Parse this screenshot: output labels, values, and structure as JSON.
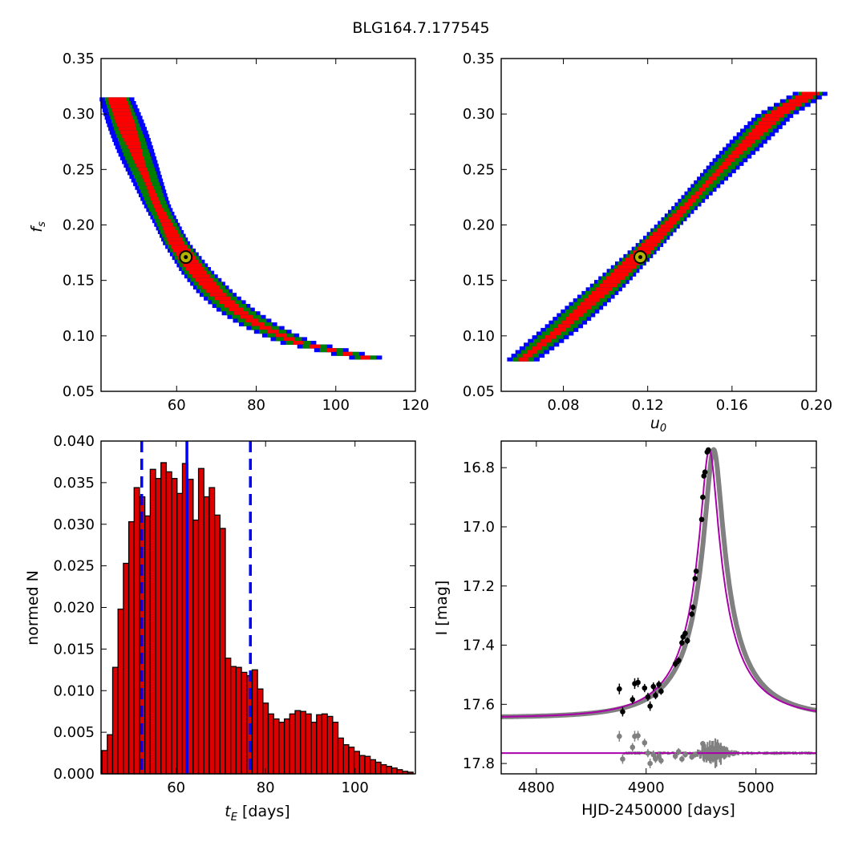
{
  "title": "BLG164.7.177545",
  "panels": {
    "top_left": {
      "ylabel": "f_s",
      "xticks": [
        "60",
        "80",
        "100",
        "120"
      ],
      "yticks": [
        "0.35",
        "0.30",
        "0.25",
        "0.20",
        "0.15",
        "0.10",
        "0.05"
      ],
      "xlim": [
        41,
        120
      ],
      "ylim": [
        0.05,
        0.35
      ],
      "best_fit": {
        "x": 62.3,
        "y": 0.171
      }
    },
    "top_right": {
      "xlabel": "u_0",
      "xticks": [
        "0.08",
        "0.12",
        "0.16",
        "0.20"
      ],
      "yticks": [
        "0.35",
        "0.30",
        "0.25",
        "0.20",
        "0.15",
        "0.10",
        "0.05"
      ],
      "xlim": [
        0.0505,
        0.2
      ],
      "ylim": [
        0.05,
        0.35
      ],
      "best_fit": {
        "x": 0.1165,
        "y": 0.171
      }
    },
    "bottom_left": {
      "xlabel": "t_E [days]",
      "ylabel": "normed N",
      "xticks": [
        "60",
        "80",
        "100"
      ],
      "yticks": [
        "0.040",
        "0.035",
        "0.030",
        "0.025",
        "0.020",
        "0.015",
        "0.010",
        "0.005",
        "0.000"
      ],
      "xlim": [
        43.2,
        113.5
      ],
      "ylim": [
        0,
        0.04
      ]
    },
    "bottom_right": {
      "xlabel": "HJD-2450000 [days]",
      "ylabel": "I [mag]",
      "xticks": [
        "4800",
        "4900",
        "5000"
      ],
      "yticks": [
        "16.8",
        "17.0",
        "17.2",
        "17.4",
        "17.6",
        "17.8"
      ],
      "xlim": [
        4768,
        5055
      ],
      "ylim": [
        17.835,
        16.71
      ]
    }
  },
  "colors": {
    "sigma1": "#ff0000",
    "sigma2": "#008000",
    "sigma3": "#0000ff",
    "best_fit_marker": "#b3b300",
    "hist_bar": "#dd0000",
    "vline": "#0000ff",
    "model": "#aa00aa",
    "model_band": "#808080",
    "data": "#000000",
    "residual": "#808080"
  },
  "chart_data": [
    {
      "panel": "top_left",
      "type": "heatmap",
      "x_variable": "t_E",
      "y_variable": "f_s",
      "levels": [
        "1-sigma (red)",
        "2-sigma (green)",
        "3-sigma (blue)"
      ],
      "ridge": [
        [
          45,
          0.315
        ],
        [
          50,
          0.265
        ],
        [
          55,
          0.22
        ],
        [
          60,
          0.185
        ],
        [
          65,
          0.16
        ],
        [
          70,
          0.14
        ],
        [
          75,
          0.125
        ],
        [
          80,
          0.113
        ],
        [
          85,
          0.104
        ],
        [
          90,
          0.096
        ],
        [
          95,
          0.092
        ],
        [
          100,
          0.088
        ],
        [
          105,
          0.084
        ],
        [
          112,
          0.079
        ]
      ],
      "best_fit": {
        "t_E": 62.3,
        "f_s": 0.171
      }
    },
    {
      "panel": "top_right",
      "type": "heatmap",
      "x_variable": "u_0",
      "y_variable": "f_s",
      "levels": [
        "1-sigma (red)",
        "2-sigma (green)",
        "3-sigma (blue)"
      ],
      "ridge": [
        [
          0.06,
          0.079
        ],
        [
          0.08,
          0.11
        ],
        [
          0.1,
          0.145
        ],
        [
          0.12,
          0.182
        ],
        [
          0.14,
          0.222
        ],
        [
          0.16,
          0.262
        ],
        [
          0.18,
          0.3
        ],
        [
          0.197,
          0.32
        ]
      ],
      "best_fit": {
        "u_0": 0.1165,
        "f_s": 0.171
      }
    },
    {
      "panel": "bottom_left",
      "type": "bar",
      "x": [
        44.0,
        45.2,
        46.4,
        47.6,
        48.8,
        50.0,
        51.2,
        52.4,
        53.6,
        54.8,
        56.0,
        57.2,
        58.4,
        59.6,
        60.8,
        62.0,
        63.2,
        64.4,
        65.6,
        66.8,
        68.0,
        69.2,
        70.4,
        71.6,
        72.8,
        74.0,
        75.2,
        76.4,
        77.6,
        78.8,
        80.0,
        81.2,
        82.4,
        83.6,
        84.8,
        86.0,
        87.2,
        88.4,
        89.6,
        90.8,
        92.0,
        93.2,
        94.4,
        95.6,
        96.8,
        98.0,
        99.2,
        100.4,
        101.6,
        102.8,
        104.0,
        105.2,
        106.4,
        107.6,
        108.8,
        110.0,
        111.2,
        112.4
      ],
      "values": [
        0.0028,
        0.0047,
        0.0128,
        0.0198,
        0.0253,
        0.0303,
        0.0344,
        0.0333,
        0.031,
        0.0366,
        0.0355,
        0.0374,
        0.0363,
        0.0355,
        0.0337,
        0.0373,
        0.0354,
        0.0305,
        0.0367,
        0.0333,
        0.0344,
        0.0311,
        0.0295,
        0.0139,
        0.0129,
        0.0128,
        0.0122,
        0.0118,
        0.0125,
        0.0102,
        0.0085,
        0.0072,
        0.0066,
        0.0062,
        0.0066,
        0.0072,
        0.0076,
        0.0075,
        0.0072,
        0.0062,
        0.0071,
        0.0072,
        0.0069,
        0.0062,
        0.0043,
        0.0035,
        0.0032,
        0.0027,
        0.0022,
        0.0021,
        0.0017,
        0.0014,
        0.0011,
        0.0009,
        0.0007,
        0.0005,
        0.0003,
        0.0002
      ],
      "xlabel": "t_E [days]",
      "ylabel": "normed N",
      "xlim": [
        43.2,
        113.5
      ],
      "ylim": [
        0,
        0.04
      ],
      "vlines": [
        {
          "x": 52.3,
          "style": "dashed"
        },
        {
          "x": 62.4,
          "style": "solid"
        },
        {
          "x": 76.6,
          "style": "dashed"
        }
      ]
    },
    {
      "panel": "bottom_right",
      "type": "line",
      "xlabel": "HJD-2450000 [days]",
      "ylabel": "I [mag]",
      "xlim": [
        4768,
        5055
      ],
      "ylim": [
        17.835,
        16.71
      ],
      "model": {
        "t0": 4957.5,
        "t_E": 62.3,
        "u_0": 0.1165,
        "f_s": 0.171,
        "I_base": 17.645,
        "residual_baseline": 17.765
      },
      "points": [
        {
          "x": 4875.6,
          "y": 17.548,
          "err": 0.018
        },
        {
          "x": 4878.6,
          "y": 17.625,
          "err": 0.016
        },
        {
          "x": 4887.6,
          "y": 17.584,
          "err": 0.014
        },
        {
          "x": 4889.6,
          "y": 17.53,
          "err": 0.018
        },
        {
          "x": 4892.6,
          "y": 17.526,
          "err": 0.016
        },
        {
          "x": 4898.6,
          "y": 17.545,
          "err": 0.014
        },
        {
          "x": 4901.6,
          "y": 17.575,
          "err": 0.014
        },
        {
          "x": 4903.6,
          "y": 17.606,
          "err": 0.016
        },
        {
          "x": 4906.6,
          "y": 17.54,
          "err": 0.014
        },
        {
          "x": 4908.6,
          "y": 17.57,
          "err": 0.013
        },
        {
          "x": 4911.6,
          "y": 17.533,
          "err": 0.013
        },
        {
          "x": 4913.6,
          "y": 17.556,
          "err": 0.012
        },
        {
          "x": 4926.6,
          "y": 17.463,
          "err": 0.012
        },
        {
          "x": 4929.6,
          "y": 17.452,
          "err": 0.012
        },
        {
          "x": 4932.6,
          "y": 17.392,
          "err": 0.011
        },
        {
          "x": 4933.6,
          "y": 17.372,
          "err": 0.011
        },
        {
          "x": 4935.6,
          "y": 17.36,
          "err": 0.01
        },
        {
          "x": 4937.6,
          "y": 17.385,
          "err": 0.011
        },
        {
          "x": 4941.6,
          "y": 17.295,
          "err": 0.01
        },
        {
          "x": 4942.6,
          "y": 17.272,
          "err": 0.01
        },
        {
          "x": 4944.6,
          "y": 17.175,
          "err": 0.01
        },
        {
          "x": 4945.6,
          "y": 17.15,
          "err": 0.009
        },
        {
          "x": 4950.6,
          "y": 16.975,
          "err": 0.009
        },
        {
          "x": 4951.6,
          "y": 16.9,
          "err": 0.009
        },
        {
          "x": 4952.6,
          "y": 16.828,
          "err": 0.008
        },
        {
          "x": 4953.6,
          "y": 16.815,
          "err": 0.008
        },
        {
          "x": 4955.6,
          "y": 16.747,
          "err": 0.008
        },
        {
          "x": 4956.6,
          "y": 16.74,
          "err": 0.008
        }
      ],
      "residual_points": [
        {
          "x": 4875.6,
          "y": 17.708,
          "err": 0.018
        },
        {
          "x": 4878.6,
          "y": 17.785,
          "err": 0.016
        },
        {
          "x": 4887.6,
          "y": 17.745,
          "err": 0.014
        },
        {
          "x": 4889.6,
          "y": 17.708,
          "err": 0.018
        },
        {
          "x": 4892.6,
          "y": 17.706,
          "err": 0.016
        },
        {
          "x": 4898.6,
          "y": 17.73,
          "err": 0.014
        },
        {
          "x": 4901.6,
          "y": 17.765,
          "err": 0.014
        },
        {
          "x": 4903.6,
          "y": 17.8,
          "err": 0.016
        },
        {
          "x": 4906.6,
          "y": 17.77,
          "err": 0.014
        },
        {
          "x": 4908.6,
          "y": 17.785,
          "err": 0.013
        },
        {
          "x": 4911.6,
          "y": 17.775,
          "err": 0.013
        },
        {
          "x": 4913.6,
          "y": 17.79,
          "err": 0.012
        },
        {
          "x": 4926.6,
          "y": 17.775,
          "err": 0.012
        },
        {
          "x": 4929.6,
          "y": 17.76,
          "err": 0.012
        },
        {
          "x": 4932.6,
          "y": 17.785,
          "err": 0.011
        },
        {
          "x": 4935.6,
          "y": 17.77,
          "err": 0.01
        },
        {
          "x": 4941.6,
          "y": 17.778,
          "err": 0.01
        },
        {
          "x": 4944.6,
          "y": 17.77,
          "err": 0.01
        },
        {
          "x": 4951.6,
          "y": 17.733,
          "err": 0.009
        }
      ]
    }
  ]
}
